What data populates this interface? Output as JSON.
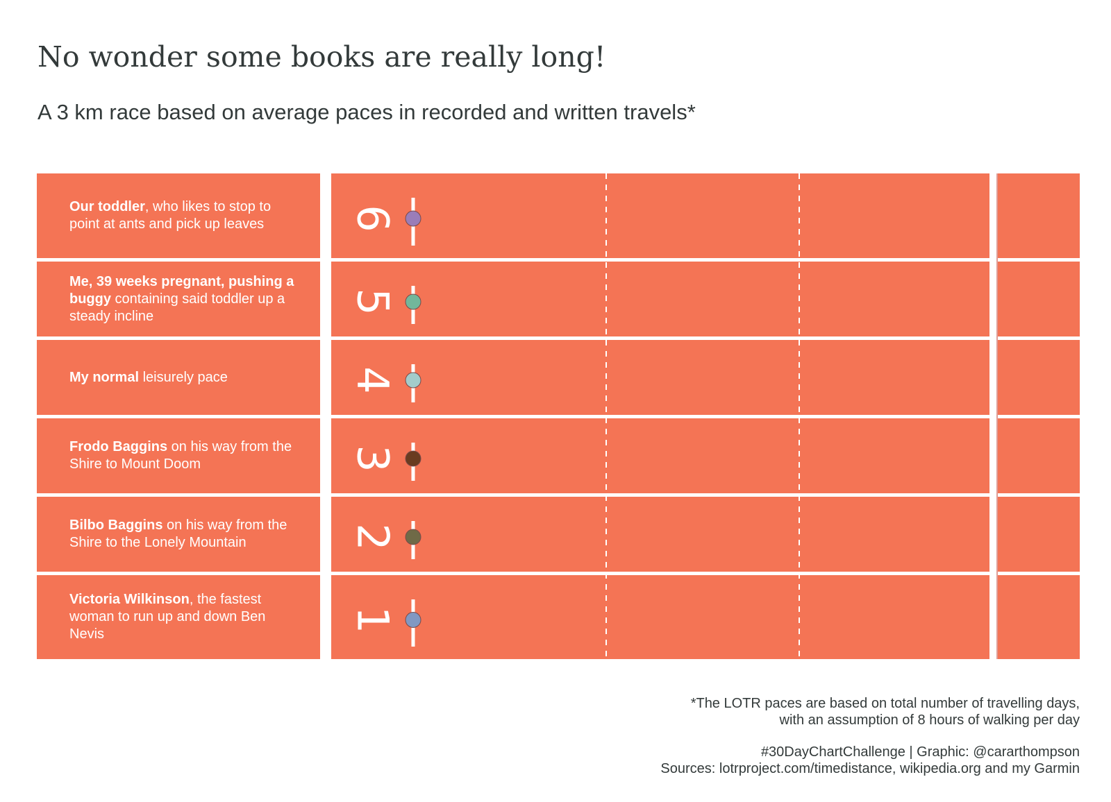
{
  "header": {
    "title": "No wonder some books are really long!",
    "subtitle": "A 3 km race based on average paces in recorded and written travels*"
  },
  "lanes": [
    {
      "number": "6",
      "bold": "Our toddler",
      "text": ", who likes to stop to point at ants and pick up leaves",
      "color": "#9a7db8"
    },
    {
      "number": "5",
      "bold": "Me, 39 weeks pregnant, pushing a buggy",
      "text": " containing said toddler up a steady incline",
      "color": "#72b79b"
    },
    {
      "number": "4",
      "bold": "My normal",
      "text": " leisurely pace",
      "color": "#a3cccb"
    },
    {
      "number": "3",
      "bold": "Frodo Baggins",
      "text": " on his way from the Shire to Mount Doom",
      "color": "#6a3b20"
    },
    {
      "number": "2",
      "bold": "Bilbo Baggins",
      "text": " on his way from the Shire to the Lonely Mountain",
      "color": "#6f6a47"
    },
    {
      "number": "1",
      "bold": "Victoria Wilkinson",
      "text": ", the fastest woman to run up and down Ben Nevis",
      "color": "#8198c2"
    }
  ],
  "footer": {
    "note": [
      "*The LOTR paces are based on total number of travelling days,",
      "with an assumption of 8 hours of walking per day"
    ],
    "credits": [
      "#30DayChartChallenge | Graphic: @cararthompson",
      "Sources: lotrproject.com/timedistance, wikipedia.org and my Garmin"
    ]
  }
}
